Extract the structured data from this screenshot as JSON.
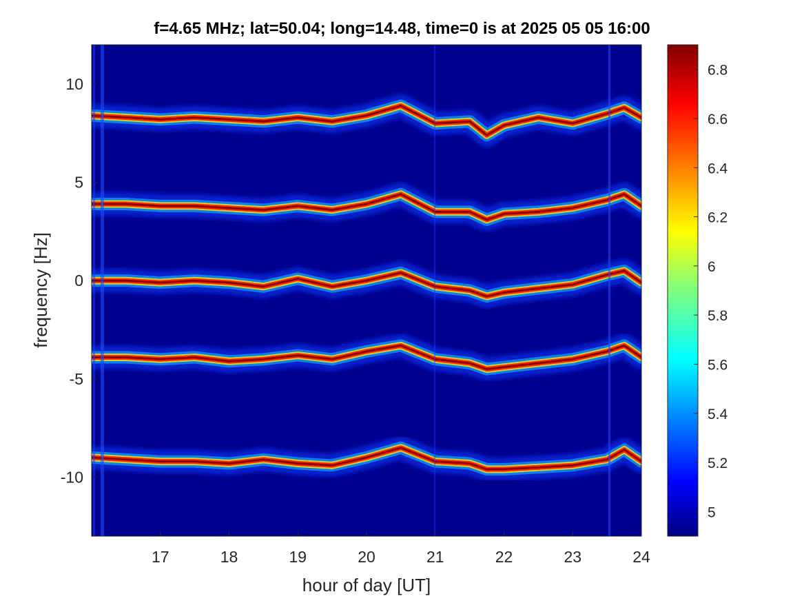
{
  "chart_data": {
    "type": "heatmap",
    "title": "f=4.65 MHz;  lat=50.04; long=14.48, time=0 is at 2025 05 05 16:00",
    "xlabel": "hour of day [UT]",
    "ylabel": "frequency [Hz]",
    "xlim": [
      16,
      24
    ],
    "ylim": [
      -13,
      12
    ],
    "x_ticks": [
      17,
      18,
      19,
      20,
      21,
      22,
      23,
      24
    ],
    "y_ticks": [
      10,
      5,
      0,
      -5,
      -10
    ],
    "colormap": "jet",
    "colorbar": {
      "range": [
        4.9,
        6.9
      ],
      "ticks": [
        5,
        5.2,
        5.4,
        5.6,
        5.8,
        6,
        6.2,
        6.4,
        6.6,
        6.8
      ],
      "tick_labels": [
        "5",
        "5.2",
        "5.4",
        "5.6",
        "5.8",
        "6",
        "6.2",
        "6.4",
        "6.6",
        "6.8"
      ]
    },
    "background_value": 4.9,
    "series": [
      {
        "values": [
          [
            16.0,
            8.4
          ],
          [
            16.5,
            8.3
          ],
          [
            17.0,
            8.2
          ],
          [
            17.5,
            8.3
          ],
          [
            18.0,
            8.2
          ],
          [
            18.5,
            8.1
          ],
          [
            19.0,
            8.3
          ],
          [
            19.5,
            8.1
          ],
          [
            20.0,
            8.4
          ],
          [
            20.5,
            8.9
          ],
          [
            21.0,
            8.0
          ],
          [
            21.5,
            8.1
          ],
          [
            21.75,
            7.4
          ],
          [
            22.0,
            7.9
          ],
          [
            22.5,
            8.3
          ],
          [
            23.0,
            8.0
          ],
          [
            23.5,
            8.5
          ],
          [
            23.75,
            8.8
          ],
          [
            24.0,
            8.3
          ]
        ]
      },
      {
        "values": [
          [
            16.0,
            3.9
          ],
          [
            16.5,
            3.9
          ],
          [
            17.0,
            3.8
          ],
          [
            17.5,
            3.8
          ],
          [
            18.0,
            3.7
          ],
          [
            18.5,
            3.6
          ],
          [
            19.0,
            3.8
          ],
          [
            19.5,
            3.6
          ],
          [
            20.0,
            3.9
          ],
          [
            20.5,
            4.4
          ],
          [
            21.0,
            3.5
          ],
          [
            21.5,
            3.5
          ],
          [
            21.75,
            3.1
          ],
          [
            22.0,
            3.4
          ],
          [
            22.5,
            3.5
          ],
          [
            23.0,
            3.7
          ],
          [
            23.5,
            4.1
          ],
          [
            23.75,
            4.4
          ],
          [
            24.0,
            3.8
          ]
        ]
      },
      {
        "values": [
          [
            16.0,
            0.0
          ],
          [
            16.5,
            0.0
          ],
          [
            17.0,
            -0.1
          ],
          [
            17.5,
            0.0
          ],
          [
            18.0,
            -0.1
          ],
          [
            18.5,
            -0.3
          ],
          [
            19.0,
            0.1
          ],
          [
            19.5,
            -0.3
          ],
          [
            20.0,
            0.0
          ],
          [
            20.5,
            0.4
          ],
          [
            21.0,
            -0.3
          ],
          [
            21.5,
            -0.5
          ],
          [
            21.75,
            -0.8
          ],
          [
            22.0,
            -0.6
          ],
          [
            22.5,
            -0.4
          ],
          [
            23.0,
            -0.2
          ],
          [
            23.5,
            0.3
          ],
          [
            23.75,
            0.5
          ],
          [
            24.0,
            -0.1
          ]
        ]
      },
      {
        "values": [
          [
            16.0,
            -3.9
          ],
          [
            16.5,
            -3.9
          ],
          [
            17.0,
            -4.0
          ],
          [
            17.5,
            -3.9
          ],
          [
            18.0,
            -4.1
          ],
          [
            18.5,
            -4.0
          ],
          [
            19.0,
            -3.8
          ],
          [
            19.5,
            -4.0
          ],
          [
            20.0,
            -3.6
          ],
          [
            20.5,
            -3.3
          ],
          [
            21.0,
            -4.0
          ],
          [
            21.5,
            -4.2
          ],
          [
            21.75,
            -4.5
          ],
          [
            22.0,
            -4.4
          ],
          [
            22.5,
            -4.2
          ],
          [
            23.0,
            -4.0
          ],
          [
            23.5,
            -3.6
          ],
          [
            23.75,
            -3.3
          ],
          [
            24.0,
            -3.9
          ]
        ]
      },
      {
        "values": [
          [
            16.0,
            -9.0
          ],
          [
            16.5,
            -9.1
          ],
          [
            17.0,
            -9.2
          ],
          [
            17.5,
            -9.2
          ],
          [
            18.0,
            -9.3
          ],
          [
            18.5,
            -9.1
          ],
          [
            19.0,
            -9.3
          ],
          [
            19.5,
            -9.4
          ],
          [
            20.0,
            -9.0
          ],
          [
            20.5,
            -8.5
          ],
          [
            21.0,
            -9.2
          ],
          [
            21.5,
            -9.3
          ],
          [
            21.75,
            -9.6
          ],
          [
            22.0,
            -9.6
          ],
          [
            22.5,
            -9.5
          ],
          [
            23.0,
            -9.4
          ],
          [
            23.5,
            -9.1
          ],
          [
            23.75,
            -8.6
          ],
          [
            24.0,
            -9.2
          ]
        ]
      }
    ]
  }
}
